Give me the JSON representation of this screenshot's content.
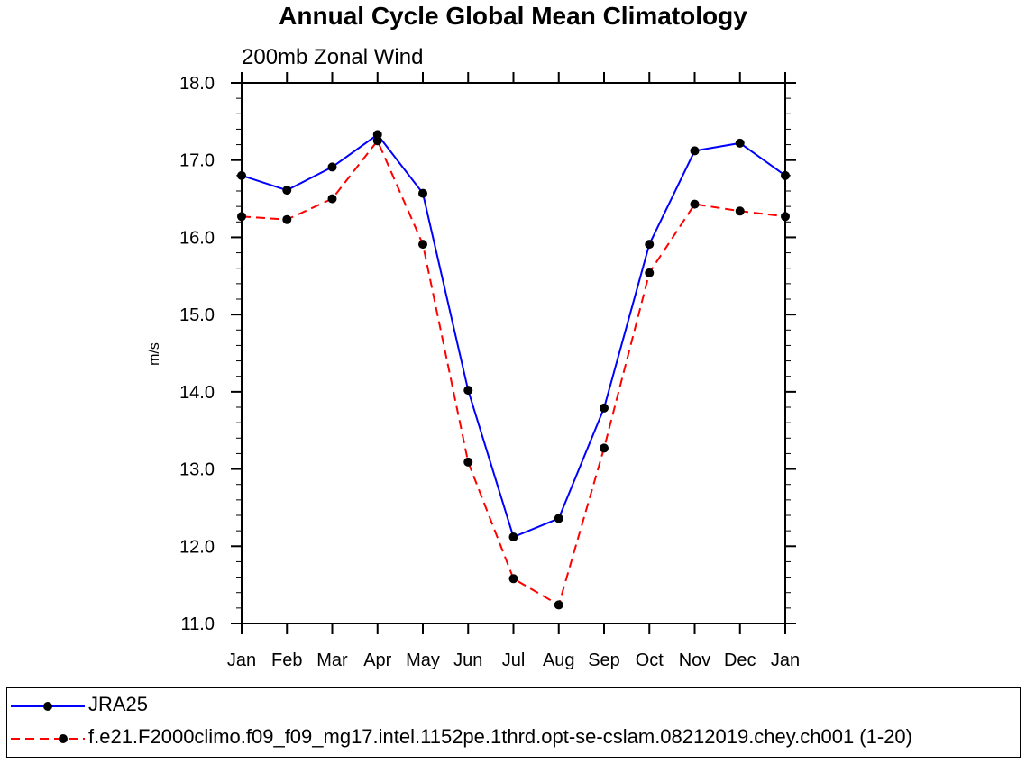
{
  "chart_data": {
    "type": "line",
    "title": "Annual Cycle Global Mean Climatology",
    "subtitle": "200mb Zonal Wind",
    "xlabel": "",
    "ylabel": "m/s",
    "categories": [
      "Jan",
      "Feb",
      "Mar",
      "Apr",
      "May",
      "Jun",
      "Jul",
      "Aug",
      "Sep",
      "Oct",
      "Nov",
      "Dec",
      "Jan"
    ],
    "ylim": [
      11.0,
      18.0
    ],
    "yticks": [
      "11.0",
      "12.0",
      "13.0",
      "14.0",
      "15.0",
      "16.0",
      "17.0",
      "18.0"
    ],
    "grid": false,
    "legend_position": "bottom",
    "series": [
      {
        "name": "JRA25",
        "color": "#0000ff",
        "style": "solid",
        "marker": "circle",
        "values": [
          16.8,
          16.61,
          16.91,
          17.33,
          16.57,
          14.02,
          12.12,
          12.36,
          13.79,
          15.91,
          17.12,
          17.22,
          16.8
        ]
      },
      {
        "name": "f.e21.F2000climo.f09_f09_mg17.intel.1152pe.1thrd.opt-se-cslam.08212019.chey.ch001 (1-20)",
        "color": "#ff0000",
        "style": "dashed",
        "marker": "circle",
        "values": [
          16.27,
          16.23,
          16.5,
          17.25,
          15.91,
          13.09,
          11.58,
          11.24,
          13.27,
          15.54,
          16.43,
          16.34,
          16.27
        ]
      }
    ]
  }
}
